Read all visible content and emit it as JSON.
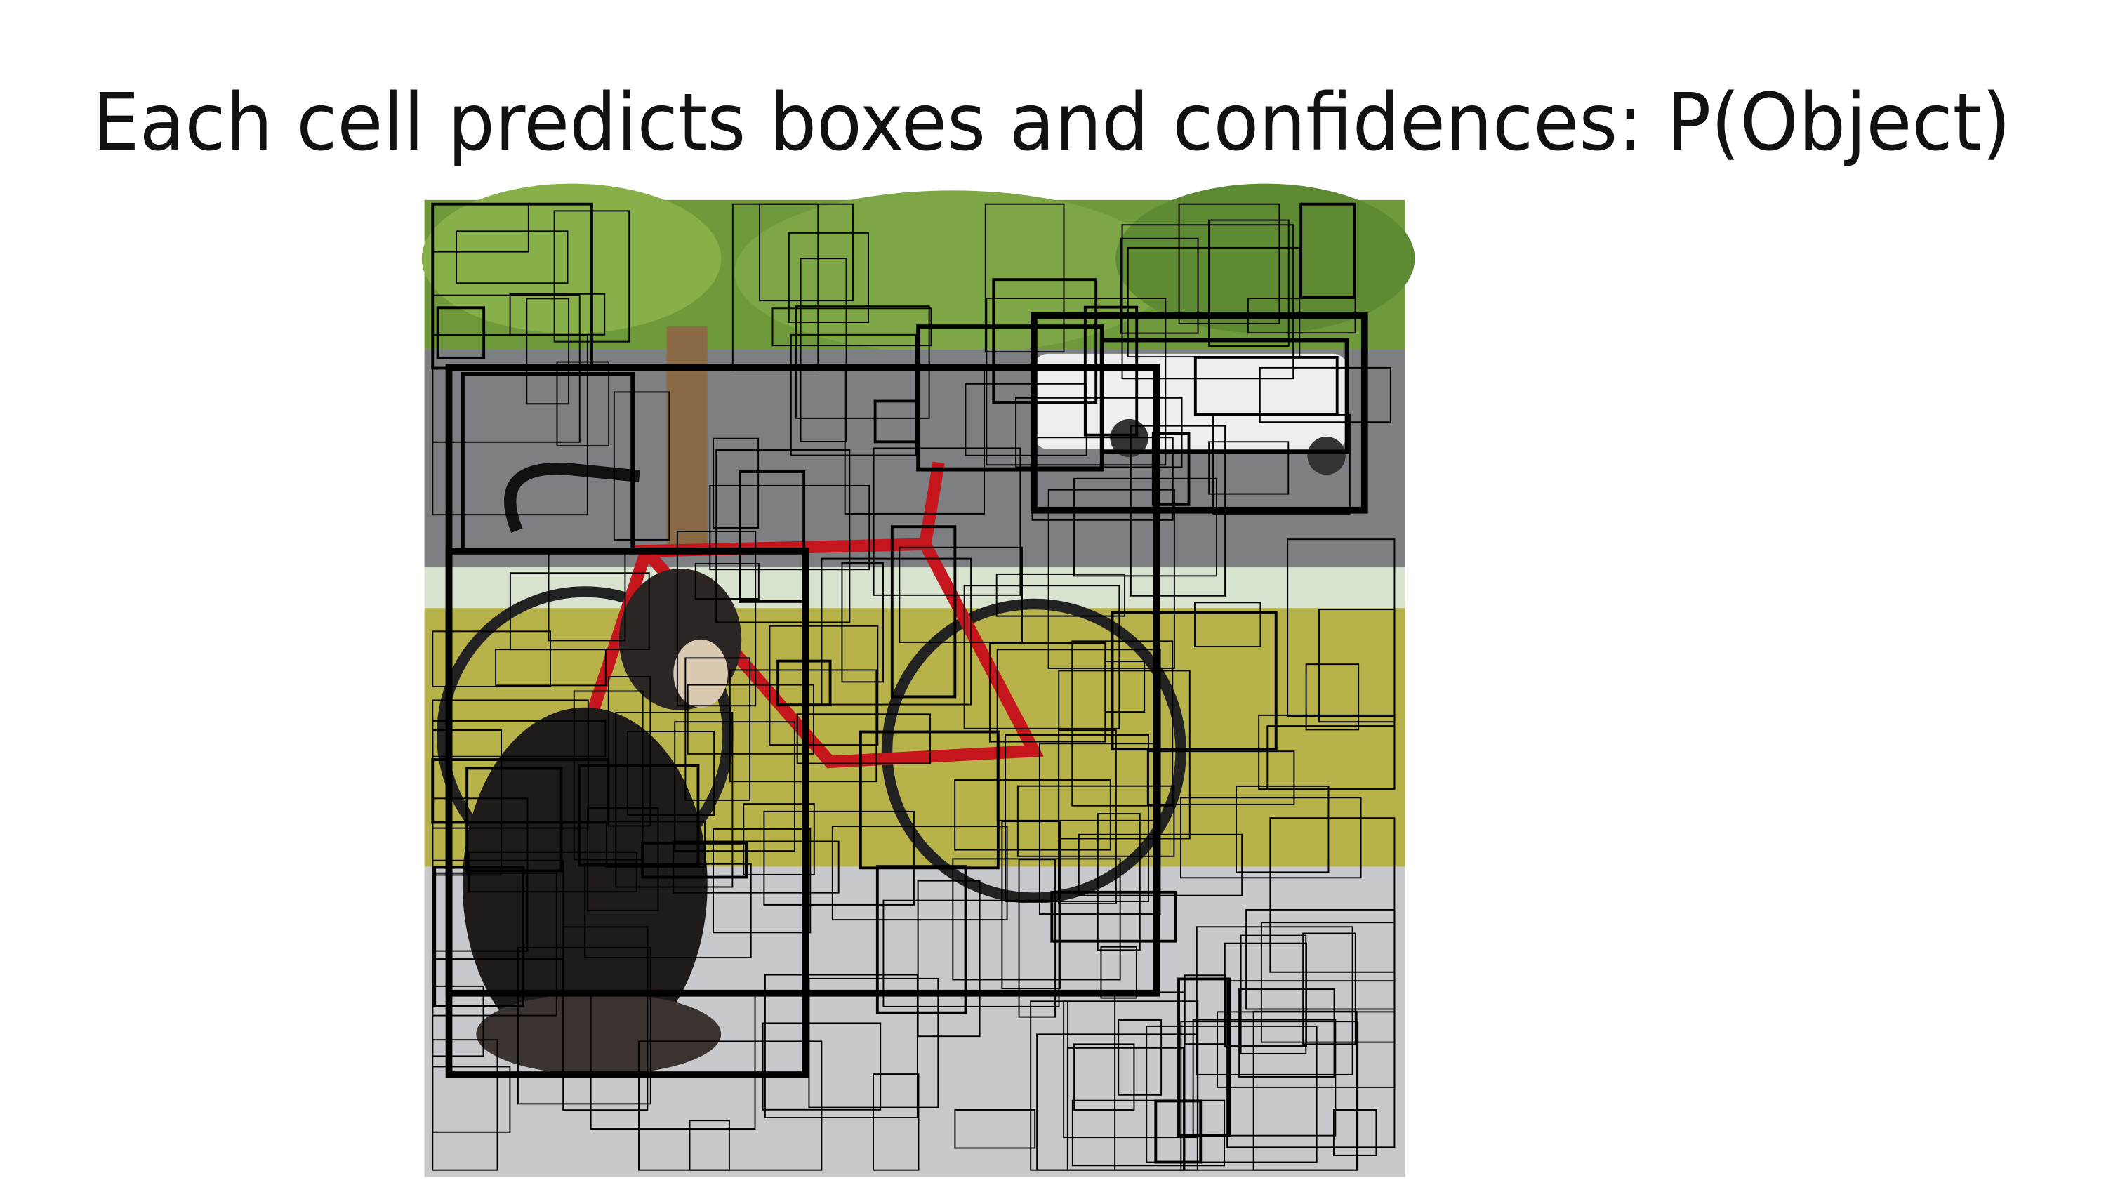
{
  "slide": {
    "title": "Each cell predicts boxes and confidences: P(Object)"
  }
}
